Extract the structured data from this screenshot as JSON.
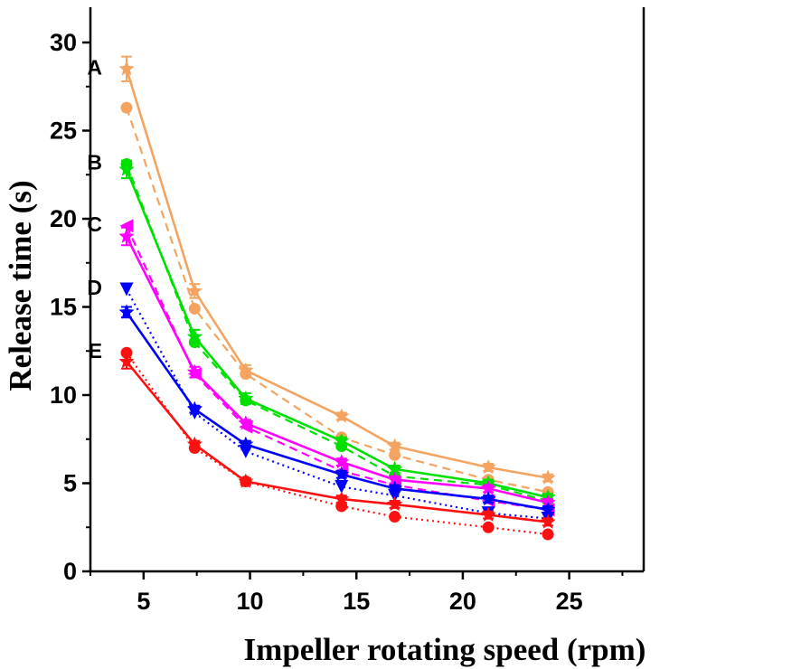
{
  "chart_data": {
    "type": "line",
    "title": "",
    "xlabel": "Impeller rotating speed (rpm)",
    "ylabel": "Release time (s)",
    "xlim": [
      2.5,
      28.5
    ],
    "ylim": [
      0,
      32
    ],
    "xticks": [
      5,
      10,
      15,
      20,
      25
    ],
    "yticks": [
      0,
      5,
      10,
      15,
      20,
      25,
      30
    ],
    "grid": false,
    "x": [
      4.2,
      7.4,
      9.8,
      14.3,
      16.8,
      21.2,
      24
    ],
    "groups": [
      {
        "label": "A",
        "color": "#F4A460",
        "series": [
          {
            "name": "A solid",
            "style": "solid",
            "marker": "star",
            "values": [
              28.5,
              15.9,
              11.4,
              8.8,
              7.1,
              5.9,
              5.3
            ],
            "errors": [
              0.7,
              0.4,
              0.3,
              0.2,
              0.2,
              0.2,
              0.2
            ]
          },
          {
            "name": "A dashed",
            "style": "dashed",
            "marker": "circle",
            "values": [
              26.3,
              14.9,
              11.2,
              7.6,
              6.6,
              5.2,
              4.5
            ],
            "errors": [
              0,
              0,
              0,
              0,
              0,
              0,
              0
            ]
          }
        ]
      },
      {
        "label": "B",
        "color": "#00E000",
        "series": [
          {
            "name": "B solid",
            "style": "solid",
            "marker": "star",
            "values": [
              22.8,
              13.3,
              9.8,
              7.4,
              5.8,
              5.0,
              4.2
            ],
            "errors": [
              0.5,
              0.4,
              0.3,
              0.2,
              0.2,
              0.2,
              0.2
            ]
          },
          {
            "name": "B dashed",
            "style": "dashed",
            "marker": "circle",
            "values": [
              23.1,
              13.0,
              9.7,
              7.1,
              5.4,
              4.9,
              4.0
            ],
            "errors": [
              0,
              0,
              0,
              0,
              0,
              0,
              0
            ]
          }
        ]
      },
      {
        "label": "C",
        "color": "#FF00FF",
        "series": [
          {
            "name": "C solid",
            "style": "solid",
            "marker": "star",
            "values": [
              19.0,
              11.3,
              8.4,
              6.2,
              5.2,
              4.7,
              3.9
            ],
            "errors": [
              0.5,
              0.3,
              0.2,
              0.2,
              0.2,
              0.2,
              0.2
            ]
          },
          {
            "name": "C dashed",
            "style": "dashed",
            "marker": "triangle-left",
            "values": [
              19.6,
              11.2,
              8.2,
              5.7,
              4.9,
              4.0,
              3.5
            ],
            "errors": [
              0,
              0,
              0,
              0,
              0,
              0,
              0
            ]
          }
        ]
      },
      {
        "label": "D",
        "color": "#0000FF",
        "series": [
          {
            "name": "D solid",
            "style": "solid",
            "marker": "star",
            "values": [
              14.7,
              9.2,
              7.2,
              5.5,
              4.7,
              4.1,
              3.5
            ],
            "errors": [
              0.3,
              0.2,
              0.2,
              0.2,
              0.2,
              0.2,
              0.2
            ]
          },
          {
            "name": "D dotted",
            "style": "dotted",
            "marker": "triangle-down",
            "values": [
              16.0,
              9.0,
              6.8,
              4.8,
              4.3,
              3.3,
              3.0
            ],
            "errors": [
              0,
              0,
              0,
              0,
              0,
              0,
              0
            ]
          }
        ]
      },
      {
        "label": "E",
        "color": "#FF1010",
        "series": [
          {
            "name": "E solid",
            "style": "solid",
            "marker": "star",
            "values": [
              11.9,
              7.2,
              5.1,
              4.1,
              3.8,
              3.2,
              2.8
            ],
            "errors": [
              0.4,
              0.2,
              0.2,
              0.2,
              0.2,
              0.2,
              0.2
            ]
          },
          {
            "name": "E dotted",
            "style": "dotted",
            "marker": "circle",
            "values": [
              12.4,
              7.0,
              5.1,
              3.7,
              3.1,
              2.5,
              2.1
            ],
            "errors": [
              0,
              0,
              0,
              0,
              0,
              0,
              0
            ]
          }
        ]
      }
    ]
  }
}
